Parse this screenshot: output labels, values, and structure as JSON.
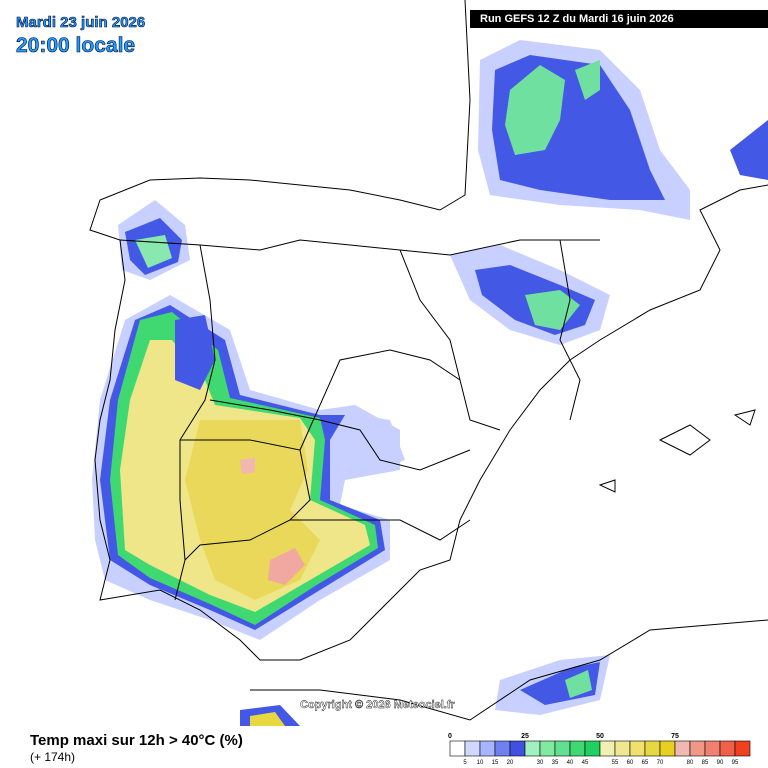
{
  "header": {
    "date": "Mardi 23 juin 2026",
    "time": "20:00 locale",
    "run": "Run GEFS 12 Z du Mardi 16 juin 2026"
  },
  "copyright": "Copyright © 2026 Meteociel.fr",
  "footer": {
    "title": "Temp maxi sur 12h > 40°C (%)",
    "lead": "(+ 174h)"
  },
  "legend": {
    "major_labels": [
      "0",
      "25",
      "50",
      "75"
    ],
    "minor_labels": [
      "5",
      "10",
      "15",
      "20",
      "30",
      "35",
      "40",
      "45",
      "55",
      "60",
      "65",
      "70",
      "80",
      "85",
      "90",
      "95"
    ],
    "colors": [
      "#ffffff",
      "#d0d8ff",
      "#a8b4ff",
      "#7080f0",
      "#4050e0",
      "#a0f0c0",
      "#80eaa0",
      "#60e090",
      "#40d870",
      "#20d060",
      "#f0f0b0",
      "#f0e890",
      "#f0e070",
      "#e8d840",
      "#e8d020",
      "#f0b8b0",
      "#f09888",
      "#f08070",
      "#f06048",
      "#f04020"
    ]
  }
}
